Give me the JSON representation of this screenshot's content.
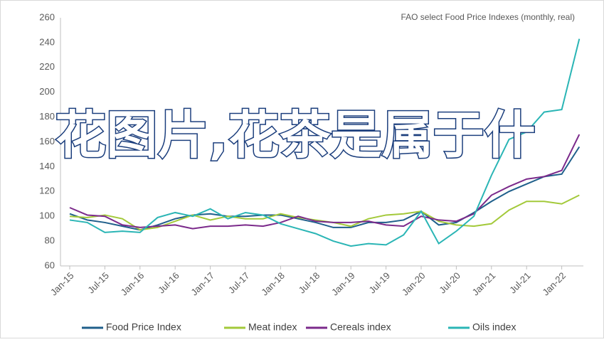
{
  "chart_data": {
    "type": "line",
    "annotation": "FAO select Food Price Indexes (monthly, real)",
    "categories": [
      "Jan-15",
      null,
      "Jul-15",
      null,
      "Jan-16",
      null,
      "Jul-16",
      null,
      "Jan-17",
      null,
      "Jul-17",
      null,
      "Jan-18",
      null,
      "Jul-18",
      null,
      "Jan-19",
      null,
      "Jul-19",
      null,
      "Jan-20",
      null,
      "Jul-20",
      null,
      "Jan-21",
      null,
      "Jul-21",
      null,
      "Jan-22",
      null
    ],
    "series": [
      {
        "name": "Food Price Index",
        "color": "#1f5f8b",
        "values": [
          102,
          97,
          95,
          92,
          89,
          93,
          98,
          101,
          102,
          100,
          100,
          101,
          101,
          98,
          95,
          91,
          91,
          95,
          95,
          97,
          104,
          93,
          95,
          103,
          112,
          120,
          126,
          132,
          134,
          156
        ]
      },
      {
        "name": "Meat index",
        "color": "#a3c93a",
        "values": [
          100,
          99,
          101,
          98,
          89,
          91,
          96,
          101,
          97,
          100,
          98,
          98,
          102,
          99,
          97,
          95,
          92,
          98,
          101,
          102,
          104,
          96,
          93,
          92,
          94,
          105,
          112,
          112,
          110,
          117
        ]
      },
      {
        "name": "Cereals index",
        "color": "#7b2a8b",
        "values": [
          107,
          101,
          100,
          93,
          91,
          92,
          93,
          90,
          92,
          92,
          93,
          92,
          95,
          100,
          96,
          95,
          95,
          96,
          93,
          92,
          100,
          97,
          96,
          102,
          117,
          124,
          130,
          132,
          137,
          166
        ]
      },
      {
        "name": "Oils index",
        "color": "#2ab5b5",
        "values": [
          97,
          95,
          87,
          88,
          87,
          99,
          103,
          100,
          106,
          98,
          103,
          101,
          94,
          90,
          86,
          80,
          76,
          78,
          77,
          85,
          104,
          78,
          88,
          100,
          133,
          162,
          168,
          184,
          186,
          243
        ]
      }
    ],
    "ylim": [
      60,
      260
    ],
    "yticks": [
      60,
      80,
      100,
      120,
      140,
      160,
      180,
      200,
      220,
      240,
      260
    ],
    "overlay_text": "花图片,花茶是属于什"
  }
}
